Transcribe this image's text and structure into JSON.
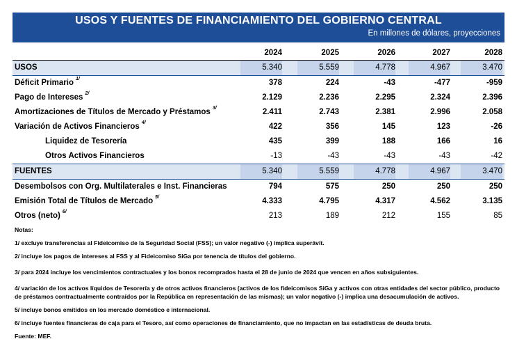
{
  "header": {
    "title": "USOS  Y FUENTES DE FINANCIAMIENTO DEL GOBIERNO CENTRAL",
    "subtitle": "En millones de dólares, proyecciones"
  },
  "table": {
    "years": [
      "2024",
      "2025",
      "2026",
      "2027",
      "2028"
    ],
    "rows": [
      {
        "label": "USOS",
        "note": "",
        "values": [
          "5.340",
          "5.559",
          "4.778",
          "4.967",
          "3.470"
        ]
      },
      {
        "label": "Déficit Primario",
        "note": "1/",
        "values": [
          "378",
          "224",
          "-43",
          "-477",
          "-959"
        ]
      },
      {
        "label": "Pago de Intereses",
        "note": "2/",
        "values": [
          "2.129",
          "2.236",
          "2.295",
          "2.324",
          "2.396"
        ]
      },
      {
        "label": "Amortizaciones de Títulos de Mercado y Préstamos",
        "note": "3/",
        "values": [
          "2.411",
          "2.743",
          "2.381",
          "2.996",
          "2.058"
        ]
      },
      {
        "label": "Variación de Activos Financieros",
        "note": "4/",
        "values": [
          "422",
          "356",
          "145",
          "123",
          "-26"
        ]
      },
      {
        "label": "Liquidez de Tesorería",
        "note": "",
        "values": [
          "435",
          "399",
          "188",
          "166",
          "16"
        ]
      },
      {
        "label": "Otros Activos Financieros",
        "note": "",
        "values": [
          "-13",
          "-43",
          "-43",
          "-43",
          "-42"
        ]
      },
      {
        "label": "FUENTES",
        "note": "",
        "values": [
          "5.340",
          "5.559",
          "4.778",
          "4.967",
          "3.470"
        ]
      },
      {
        "label": "Desembolsos con Org. Multilaterales e Inst. Financieras",
        "note": "",
        "values": [
          "794",
          "575",
          "250",
          "250",
          "250"
        ]
      },
      {
        "label": "Emisión Total de Títulos de Mercado",
        "note": "5/",
        "values": [
          "4.333",
          "4.795",
          "4.317",
          "4.562",
          "3.135"
        ]
      },
      {
        "label": "Otros (neto)",
        "note": "6/",
        "values": [
          "213",
          "189",
          "212",
          "155",
          "85"
        ]
      }
    ]
  },
  "notes": {
    "heading": "Notas:",
    "n1": "1/ excluye transferencias al Fideicomiso de la Seguridad Social (FSS); un valor negativo (-) implica superávit.",
    "n2": "2/ incluye los pagos de intereses al FSS y al Fideicomiso SiGa por tenencia de títulos del gobierno.",
    "n3": "3/ para 2024 incluye los vencimientos contractuales y los bonos recomprados hasta el 28 de junio de 2024 que vencen en años subsiguientes.",
    "n4": "4/ variación de los activos líquidos de Tesorería y de otros activos financieros (activos de los fideicomisos SiGa y activos con otras entidades del sector público, producto de préstamos contractualmente contraídos por la República en representación de las mismas); un valor negativo (-) implica una desacumulación de activos.",
    "n5": "5/ incluye bonos emitidos en los mercado doméstico e internacional.",
    "n6": "6/ incluye fuentes financieras de caja para el Tesoro, así como operaciones de financiamiento, que no impactan en las estadísticas de deuda bruta.",
    "source": "Fuente: MEF."
  }
}
